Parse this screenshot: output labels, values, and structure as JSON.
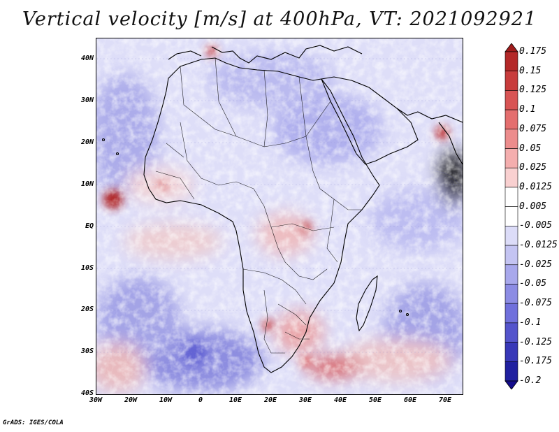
{
  "title": "Vertical velocity [m/s] at 400hPa, VT: 2021092921",
  "credit": "GrADS: IGES/COLA",
  "lat_labels": [
    "40N",
    "30N",
    "20N",
    "10N",
    "EQ",
    "10S",
    "20S",
    "30S",
    "40S"
  ],
  "lon_labels": [
    "30W",
    "20W",
    "10W",
    "0",
    "10E",
    "20E",
    "30E",
    "40E",
    "50E",
    "60E",
    "70E"
  ],
  "colorbar": {
    "levels": [
      "0.175",
      "0.15",
      "0.125",
      "0.1",
      "0.075",
      "0.05",
      "0.025",
      "0.0125",
      "0.005",
      "-0.005",
      "-0.0125",
      "-0.025",
      "-0.05",
      "-0.075",
      "-0.1",
      "-0.125",
      "-0.175",
      "-0.2"
    ],
    "colors": [
      "#a01c1c",
      "#b42828",
      "#c83c3c",
      "#d85454",
      "#e46e6e",
      "#ec8c8c",
      "#f4aeae",
      "#f9d0d0",
      "#ffffff",
      "#ffffff",
      "#dcdcf8",
      "#c4c4f2",
      "#a8a8ec",
      "#8c8ce4",
      "#7070dc",
      "#5454cc",
      "#3838b8",
      "#2020a0",
      "#140c8c"
    ]
  },
  "colors": {
    "positive": "#c83c3c",
    "negative": "#5050cc",
    "border": "#000000"
  }
}
